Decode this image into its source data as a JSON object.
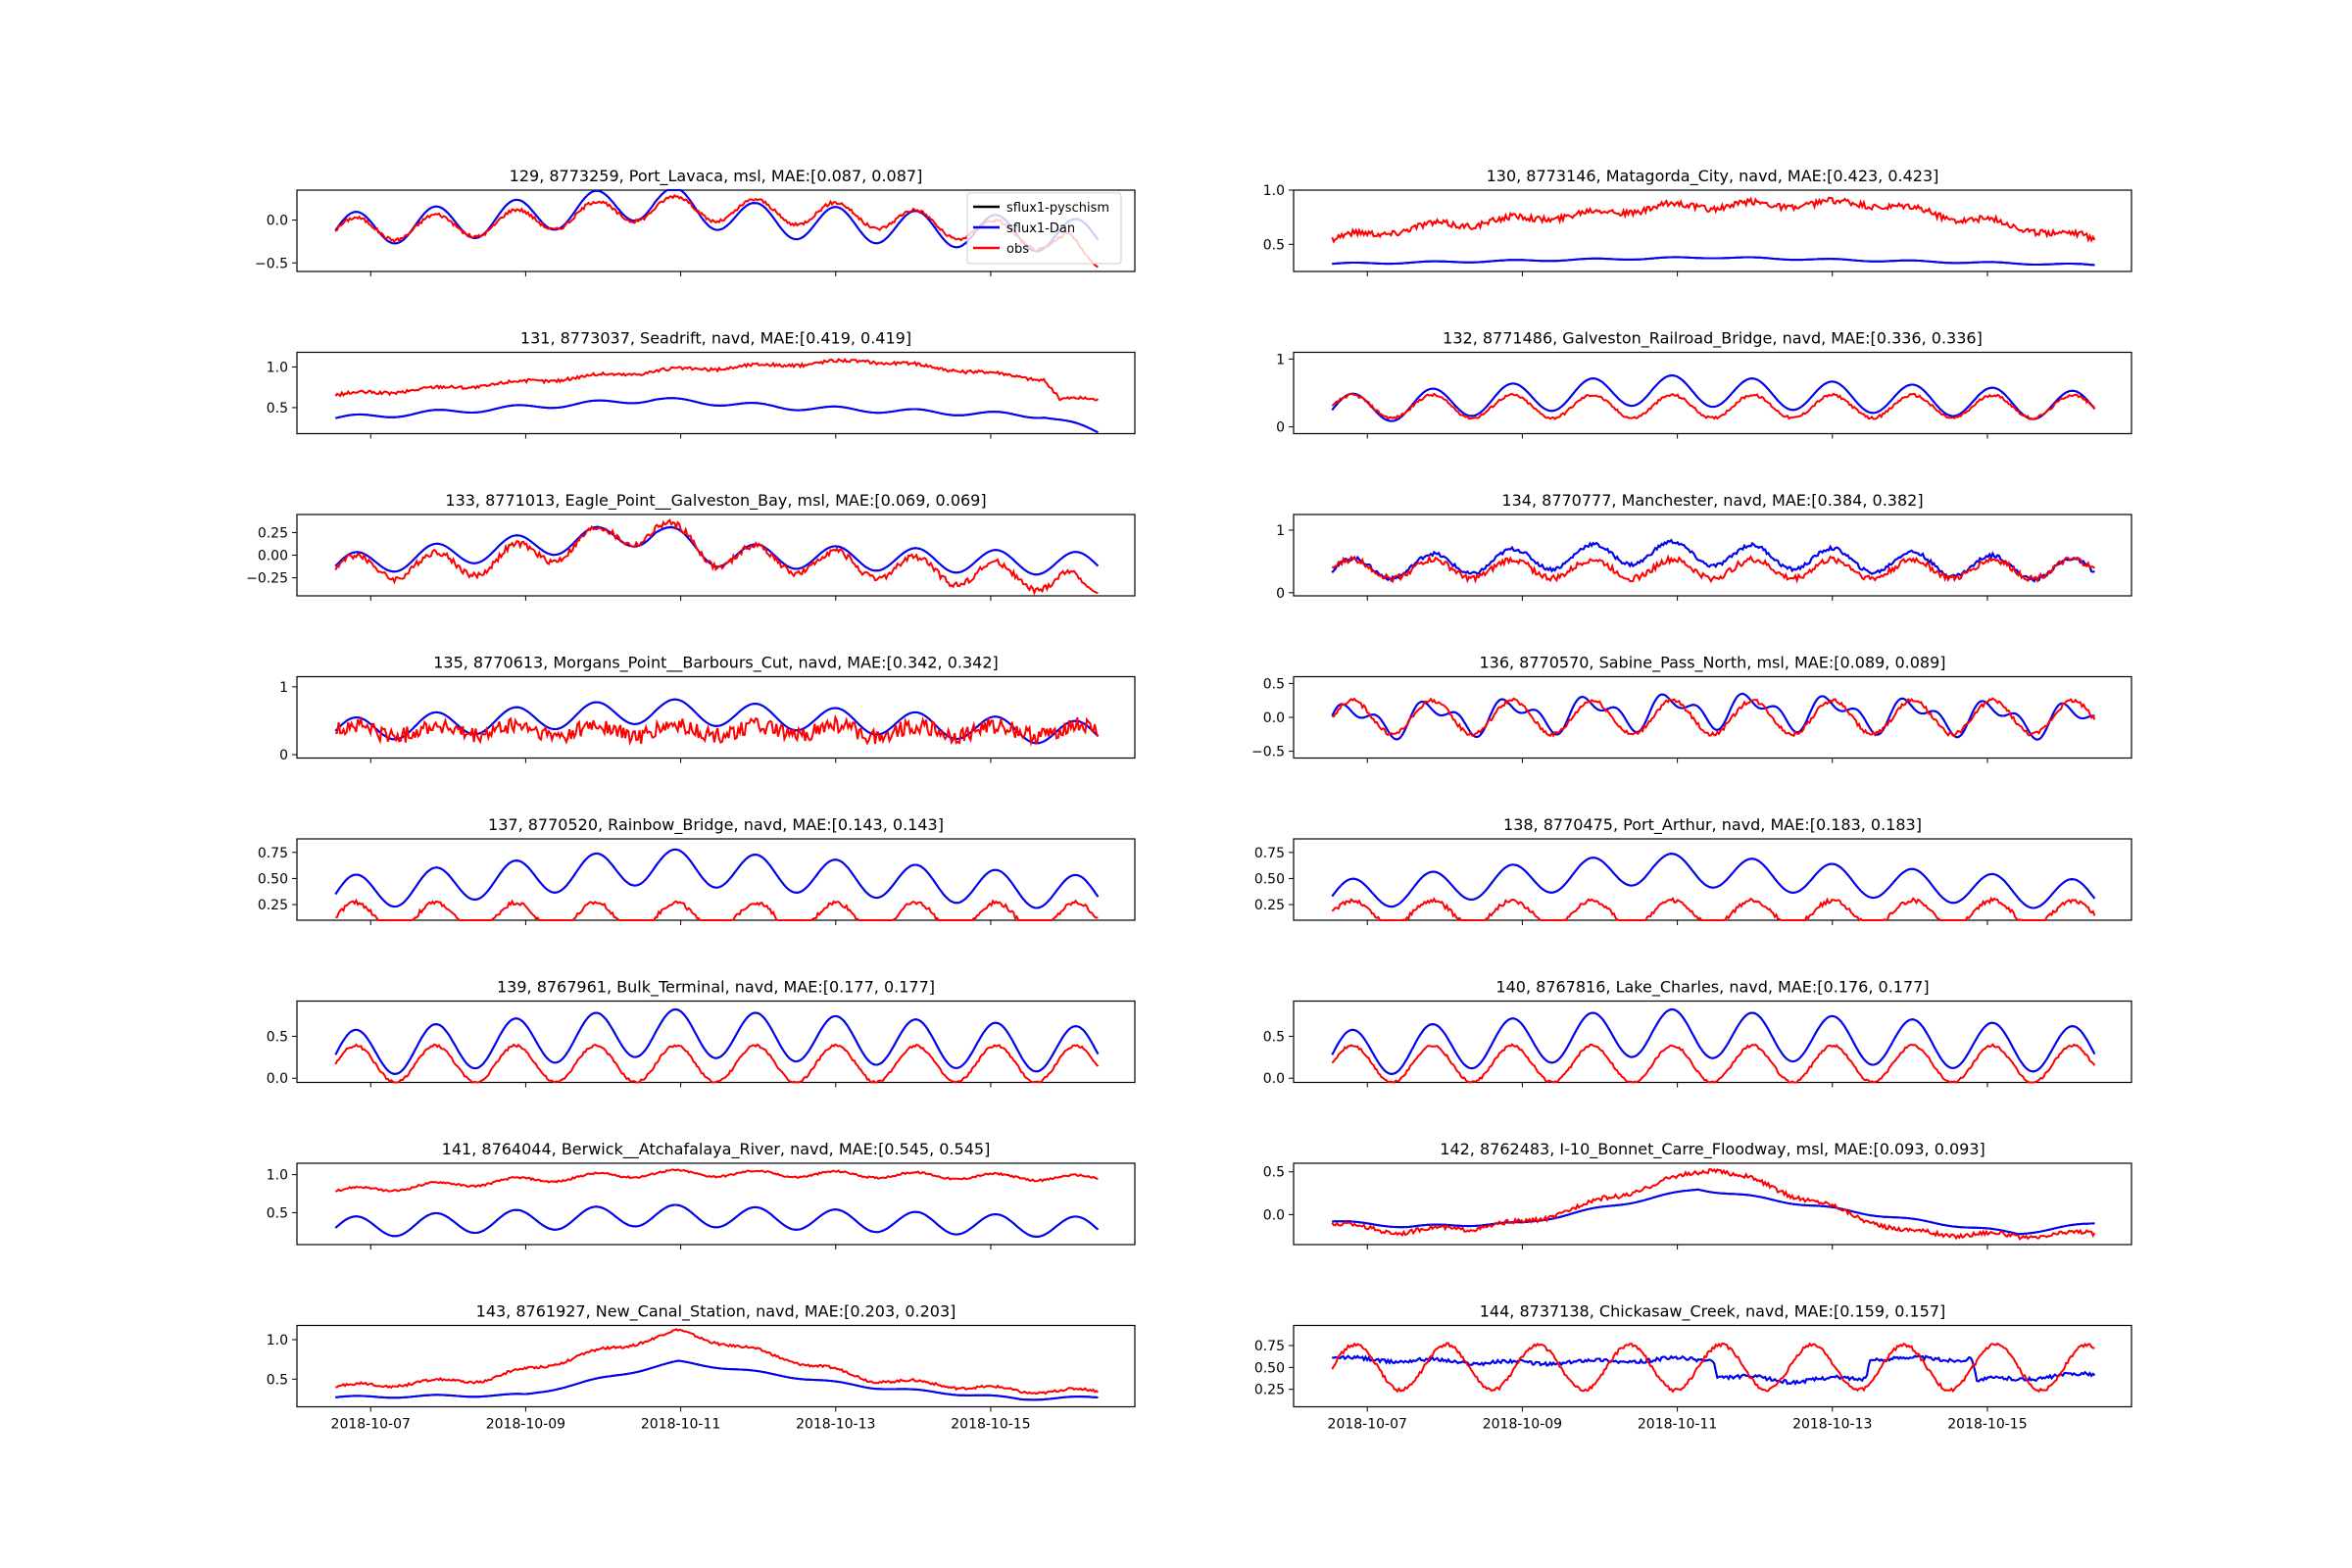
{
  "legend": {
    "entries": [
      {
        "label": "sflux1-pyschism",
        "color": "#000000"
      },
      {
        "label": "sflux1-Dan",
        "color": "#0000ff"
      },
      {
        "label": "obs",
        "color": "#ff0000"
      }
    ],
    "location": "top-right of first panel"
  },
  "colors": {
    "model_a": "#000000",
    "model_b": "#0000ff",
    "obs": "#ff0000"
  },
  "x_ticks": [
    "2018-10-07",
    "2018-10-09",
    "2018-10-11",
    "2018-10-13",
    "2018-10-15"
  ],
  "chart_data": [
    {
      "type": "line",
      "title": "129, 8773259, Port_Lavaca, msl, MAE:[0.087, 0.087]",
      "ylim": [
        -0.6,
        0.35
      ],
      "yticks": [
        {
          "v": 0.0,
          "label": "0.0"
        },
        {
          "v": -0.5,
          "label": "−0.5"
        }
      ],
      "model": {
        "base": 0.0,
        "amp": 0.2,
        "trend": [
          [
            0,
            -0.12
          ],
          [
            0.2,
            0.0
          ],
          [
            0.42,
            0.22
          ],
          [
            0.55,
            0.0
          ],
          [
            1,
            -0.2
          ]
        ]
      },
      "obs": {
        "offset": 0.0,
        "amp": 0.14,
        "noise": 0.02,
        "trend": [
          [
            0,
            -0.12
          ],
          [
            0.2,
            -0.05
          ],
          [
            0.42,
            0.15
          ],
          [
            0.7,
            0.05
          ],
          [
            1,
            -0.3
          ]
        ],
        "end": -0.55
      },
      "x": [
        0,
        1
      ],
      "xlabel": "",
      "ylabel": ""
    },
    {
      "type": "line",
      "title": "130, 8773146, Matagorda_City, navd, MAE:[0.423, 0.423]",
      "ylim": [
        0.25,
        1.0
      ],
      "yticks": [
        {
          "v": 1.0,
          "label": "1.0"
        },
        {
          "v": 0.5,
          "label": "0.5"
        }
      ],
      "model": {
        "base": 0.36,
        "amp": 0.008,
        "trend": [
          [
            0,
            -0.04
          ],
          [
            0.5,
            0.02
          ],
          [
            1,
            -0.05
          ]
        ]
      },
      "obs": {
        "offset": 0.0,
        "amp": 0.03,
        "noise": 0.03,
        "trend": [
          [
            0,
            0.55
          ],
          [
            0.1,
            0.65
          ],
          [
            0.45,
            0.85
          ],
          [
            0.7,
            0.88
          ],
          [
            0.85,
            0.72
          ],
          [
            1,
            0.55
          ]
        ]
      }
    },
    {
      "type": "line",
      "title": "131, 8773037, Seadrift, navd, MAE:[0.419, 0.419]",
      "ylim": [
        0.18,
        1.18
      ],
      "yticks": [
        {
          "v": 1.0,
          "label": "1.0"
        },
        {
          "v": 0.5,
          "label": "0.5"
        }
      ],
      "model": {
        "base": 0.45,
        "amp": 0.03,
        "trend": [
          [
            0,
            -0.08
          ],
          [
            0.42,
            0.15
          ],
          [
            0.6,
            0.05
          ],
          [
            0.93,
            -0.05
          ],
          [
            1,
            -0.25
          ]
        ]
      },
      "obs": {
        "offset": 0.0,
        "amp": 0.02,
        "noise": 0.02,
        "trend": [
          [
            0,
            0.65
          ],
          [
            0.2,
            0.78
          ],
          [
            0.42,
            0.95
          ],
          [
            0.7,
            1.08
          ],
          [
            0.93,
            0.85
          ],
          [
            0.95,
            0.6
          ],
          [
            1,
            0.6
          ]
        ]
      }
    },
    {
      "type": "line",
      "title": "132, 8771486, Galveston_Railroad_Bridge, navd, MAE:[0.336, 0.336]",
      "ylim": [
        -0.1,
        1.1
      ],
      "yticks": [
        {
          "v": 1,
          "label": "1"
        },
        {
          "v": 0,
          "label": "0"
        }
      ],
      "model": {
        "base": 0.35,
        "amp": 0.22,
        "trend": [
          [
            0,
            -0.1
          ],
          [
            0.42,
            0.2
          ],
          [
            1,
            -0.05
          ]
        ]
      },
      "obs": {
        "offset": 0.3,
        "amp": 0.17,
        "noise": 0.02
      }
    },
    {
      "type": "line",
      "title": "133, 8771013, Eagle_Point__Galveston_Bay, msl, MAE:[0.069, 0.069]",
      "ylim": [
        -0.45,
        0.45
      ],
      "yticks": [
        {
          "v": 0.25,
          "label": "0.25"
        },
        {
          "v": 0.0,
          "label": "0.00"
        },
        {
          "v": -0.25,
          "label": "−0.25"
        }
      ],
      "model": {
        "base": 0.0,
        "amp": 0.13,
        "trend": [
          [
            0,
            -0.12
          ],
          [
            0.42,
            0.25
          ],
          [
            0.5,
            0.0
          ],
          [
            1,
            -0.1
          ]
        ]
      },
      "obs": {
        "offset": 0.0,
        "amp": 0.14,
        "noise": 0.035,
        "trend": [
          [
            0,
            -0.15
          ],
          [
            0.2,
            -0.08
          ],
          [
            0.42,
            0.3
          ],
          [
            0.5,
            0.0
          ],
          [
            1,
            -0.3
          ]
        ],
        "end": -0.42
      }
    },
    {
      "type": "line",
      "title": "134, 8770777, Manchester, navd, MAE:[0.384, 0.382]",
      "ylim": [
        -0.05,
        1.25
      ],
      "yticks": [
        {
          "v": 1,
          "label": "1"
        },
        {
          "v": 0,
          "label": "0"
        }
      ],
      "model": {
        "base": 0.45,
        "amp": 0.18,
        "noise": 0.03,
        "trend": [
          [
            0,
            -0.1
          ],
          [
            0.42,
            0.2
          ],
          [
            1,
            -0.1
          ]
        ]
      },
      "obs": {
        "offset": 0.38,
        "amp": 0.15,
        "noise": 0.05
      }
    },
    {
      "type": "line",
      "title": "135, 8770613, Morgans_Point__Barbours_Cut, navd, MAE:[0.342, 0.342]",
      "ylim": [
        -0.05,
        1.15
      ],
      "yticks": [
        {
          "v": 1,
          "label": "1"
        },
        {
          "v": 0,
          "label": "0"
        }
      ],
      "model": {
        "base": 0.4,
        "amp": 0.18,
        "trend": [
          [
            0,
            -0.05
          ],
          [
            0.42,
            0.25
          ],
          [
            1,
            -0.1
          ]
        ]
      },
      "obs": {
        "offset": 0.35,
        "amp": 0.08,
        "noise": 0.12
      }
    },
    {
      "type": "line",
      "title": "136, 8770570, Sabine_Pass_North, msl, MAE:[0.089, 0.089]",
      "ylim": [
        -0.6,
        0.6
      ],
      "yticks": [
        {
          "v": 0.5,
          "label": "0.5"
        },
        {
          "v": 0.0,
          "label": "0.0"
        },
        {
          "v": -0.5,
          "label": "−0.5"
        }
      ],
      "model": {
        "base": 0.0,
        "amp": 0.32,
        "semi": true,
        "trend": [
          [
            0,
            -0.05
          ],
          [
            0.5,
            0.12
          ],
          [
            1,
            -0.05
          ]
        ]
      },
      "obs": {
        "offset": 0.0,
        "amp": 0.25,
        "noise": 0.03
      }
    },
    {
      "type": "line",
      "title": "137, 8770520, Rainbow_Bridge, navd, MAE:[0.143, 0.143]",
      "ylim": [
        0.1,
        0.88
      ],
      "yticks": [
        {
          "v": 0.75,
          "label": "0.75"
        },
        {
          "v": 0.5,
          "label": "0.50"
        },
        {
          "v": 0.25,
          "label": "0.25"
        }
      ],
      "model": {
        "base": 0.4,
        "amp": 0.17,
        "trend": [
          [
            0,
            -0.05
          ],
          [
            0.42,
            0.22
          ],
          [
            1,
            -0.05
          ]
        ]
      },
      "obs": {
        "offset": 0.13,
        "amp": 0.14,
        "noise": 0.02
      }
    },
    {
      "type": "line",
      "title": "138, 8770475, Port_Arthur, navd, MAE:[0.183, 0.183]",
      "ylim": [
        0.1,
        0.88
      ],
      "yticks": [
        {
          "v": 0.75,
          "label": "0.75"
        },
        {
          "v": 0.5,
          "label": "0.50"
        },
        {
          "v": 0.25,
          "label": "0.25"
        }
      ],
      "model": {
        "base": 0.38,
        "amp": 0.15,
        "trend": [
          [
            0,
            -0.05
          ],
          [
            0.42,
            0.22
          ],
          [
            1,
            -0.05
          ]
        ]
      },
      "obs": {
        "offset": 0.17,
        "amp": 0.12,
        "noise": 0.02
      }
    },
    {
      "type": "line",
      "title": "139, 8767961, Bulk_Terminal, navd, MAE:[0.177, 0.177]",
      "ylim": [
        -0.05,
        0.92
      ],
      "yticks": [
        {
          "v": 0.5,
          "label": "0.5"
        },
        {
          "v": 0.0,
          "label": "0.0"
        }
      ],
      "model": {
        "base": 0.33,
        "amp": 0.28,
        "trend": [
          [
            0,
            -0.05
          ],
          [
            0.42,
            0.22
          ],
          [
            1,
            0.0
          ]
        ]
      },
      "obs": {
        "offset": 0.17,
        "amp": 0.22,
        "noise": 0.015
      }
    },
    {
      "type": "line",
      "title": "140, 8767816, Lake_Charles, navd, MAE:[0.176, 0.177]",
      "ylim": [
        -0.05,
        0.92
      ],
      "yticks": [
        {
          "v": 0.5,
          "label": "0.5"
        },
        {
          "v": 0.0,
          "label": "0.0"
        }
      ],
      "model": {
        "base": 0.33,
        "amp": 0.28,
        "trend": [
          [
            0,
            -0.05
          ],
          [
            0.42,
            0.22
          ],
          [
            1,
            0.0
          ]
        ]
      },
      "obs": {
        "offset": 0.17,
        "amp": 0.22,
        "noise": 0.015
      }
    },
    {
      "type": "line",
      "title": "141, 8764044, Berwick__Atchafalaya_River, navd, MAE:[0.545, 0.545]",
      "ylim": [
        0.08,
        1.15
      ],
      "yticks": [
        {
          "v": 1.0,
          "label": "1.0"
        },
        {
          "v": 0.5,
          "label": "0.5"
        }
      ],
      "model": {
        "base": 0.35,
        "amp": 0.14,
        "trend": [
          [
            0,
            -0.05
          ],
          [
            0.42,
            0.12
          ],
          [
            1,
            -0.05
          ]
        ]
      },
      "obs": {
        "offset": 0.0,
        "amp": 0.04,
        "noise": 0.012,
        "trend": [
          [
            0,
            0.78
          ],
          [
            0.2,
            0.9
          ],
          [
            0.42,
            1.02
          ],
          [
            0.7,
            1.0
          ],
          [
            1,
            0.95
          ]
        ]
      }
    },
    {
      "type": "line",
      "title": "142, 8762483, I-10_Bonnet_Carre_Floodway, msl, MAE:[0.093, 0.093]",
      "ylim": [
        -0.35,
        0.6
      ],
      "yticks": [
        {
          "v": 0.5,
          "label": "0.5"
        },
        {
          "v": 0.0,
          "label": "0.0"
        }
      ],
      "model": {
        "base": 0.0,
        "amp": 0.015,
        "trend": [
          [
            0,
            -0.08
          ],
          [
            0.1,
            -0.14
          ],
          [
            0.25,
            -0.1
          ],
          [
            0.48,
            0.3
          ],
          [
            0.75,
            -0.05
          ],
          [
            0.9,
            -0.22
          ],
          [
            1,
            -0.1
          ]
        ]
      },
      "obs": {
        "offset": 0.0,
        "amp": 0.03,
        "noise": 0.025,
        "trend": [
          [
            0,
            -0.12
          ],
          [
            0.1,
            -0.2
          ],
          [
            0.25,
            -0.1
          ],
          [
            0.5,
            0.55
          ],
          [
            0.75,
            -0.2
          ],
          [
            0.9,
            -0.25
          ],
          [
            1,
            -0.22
          ]
        ]
      }
    },
    {
      "type": "line",
      "title": "143, 8761927, New_Canal_Station, navd, MAE:[0.203, 0.203]",
      "ylim": [
        0.15,
        1.18
      ],
      "yticks": [
        {
          "v": 1.0,
          "label": "1.0"
        },
        {
          "v": 0.5,
          "label": "0.5"
        }
      ],
      "model": {
        "base": 0.0,
        "amp": 0.015,
        "trend": [
          [
            0,
            0.27
          ],
          [
            0.25,
            0.3
          ],
          [
            0.45,
            0.72
          ],
          [
            0.7,
            0.4
          ],
          [
            0.9,
            0.25
          ],
          [
            1,
            0.27
          ]
        ]
      },
      "obs": {
        "offset": 0.0,
        "amp": 0.03,
        "noise": 0.015,
        "trend": [
          [
            0,
            0.4
          ],
          [
            0.2,
            0.5
          ],
          [
            0.45,
            1.1
          ],
          [
            0.7,
            0.5
          ],
          [
            0.9,
            0.35
          ],
          [
            1,
            0.35
          ]
        ]
      }
    },
    {
      "type": "line",
      "title": "144, 8737138, Chickasaw_Creek, navd, MAE:[0.159, 0.157]",
      "ylim": [
        0.05,
        0.98
      ],
      "yticks": [
        {
          "v": 0.75,
          "label": "0.75"
        },
        {
          "v": 0.5,
          "label": "0.50"
        },
        {
          "v": 0.25,
          "label": "0.25"
        }
      ],
      "model": {
        "base": 0.0,
        "amp": 0.02,
        "noise": 0.02,
        "trend": [
          [
            0,
            0.6
          ],
          [
            0.1,
            0.58
          ],
          [
            0.25,
            0.55
          ],
          [
            0.5,
            0.6
          ],
          [
            0.505,
            0.4
          ],
          [
            0.6,
            0.35
          ],
          [
            0.7,
            0.38
          ],
          [
            0.705,
            0.6
          ],
          [
            0.84,
            0.6
          ],
          [
            0.845,
            0.35
          ],
          [
            1,
            0.42
          ]
        ]
      },
      "obs": {
        "offset": 0.5,
        "amp": 0.26,
        "noise": 0.02,
        "period": 0.12
      }
    }
  ]
}
